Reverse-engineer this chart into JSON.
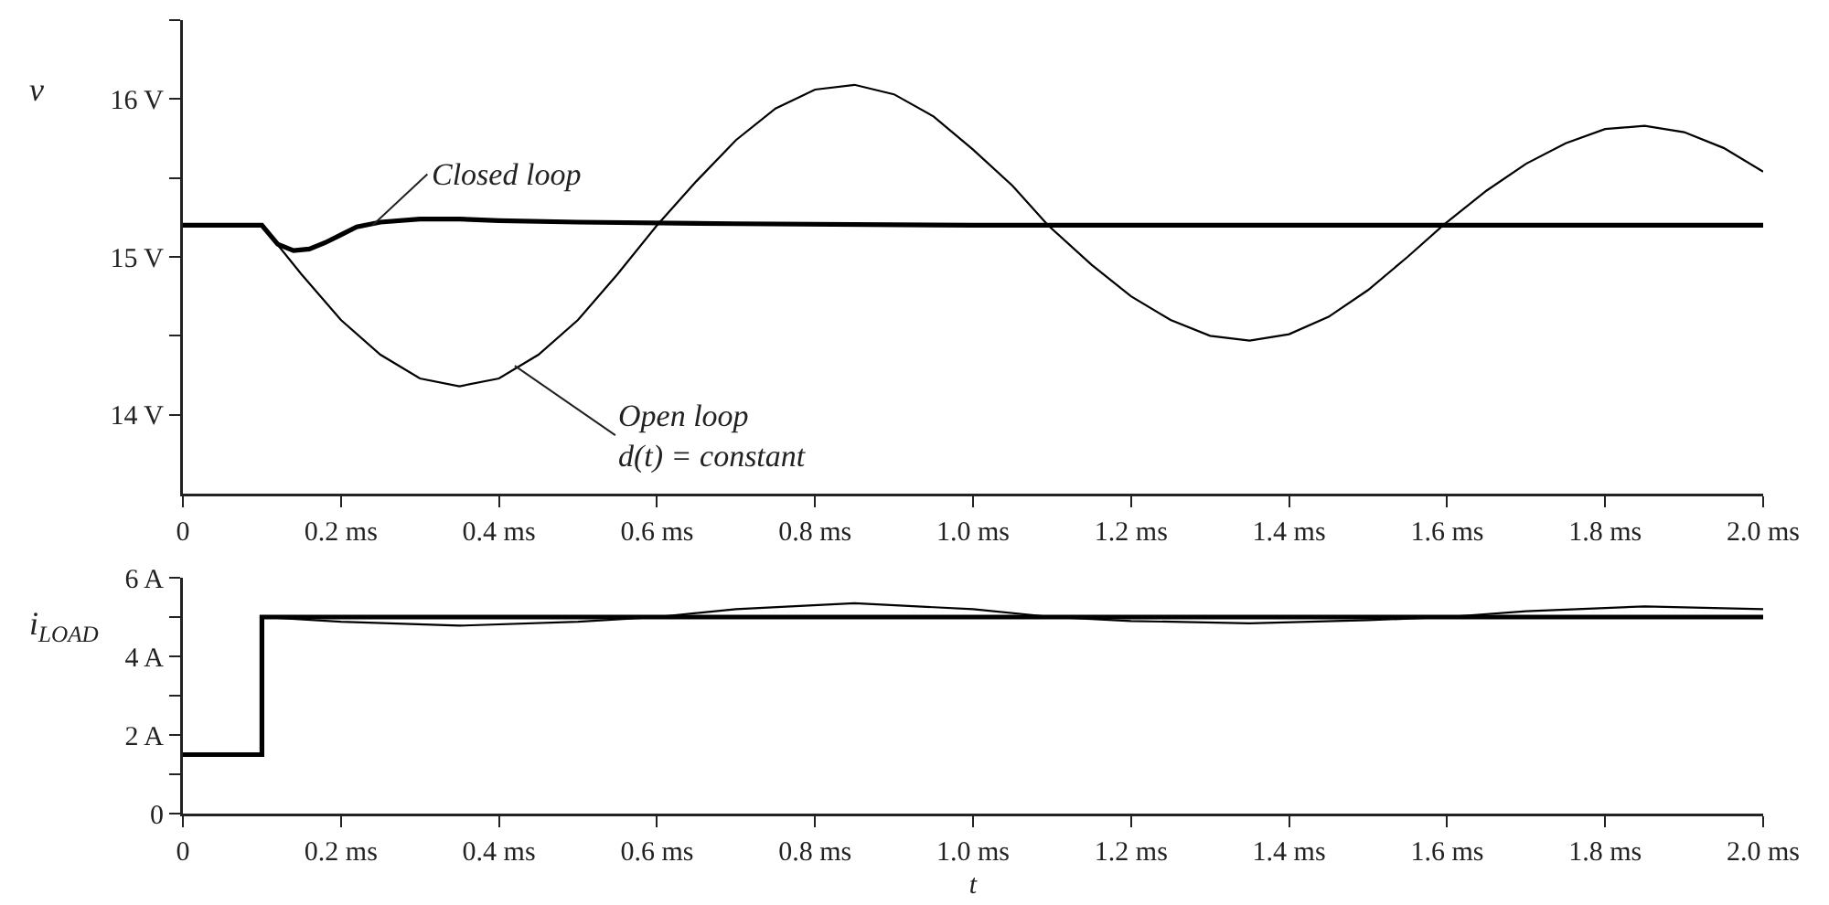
{
  "chart_data": [
    {
      "type": "line",
      "ylabel": "v",
      "xlim": [
        0,
        2.0
      ],
      "ylim": [
        13.5,
        16.5
      ],
      "grid": false,
      "marker": "none",
      "line_style": "solid",
      "xticks": [
        0,
        {
          "value": 0.2,
          "label": "0.2 ms"
        },
        {
          "value": 0.4,
          "label": "0.4 ms"
        },
        {
          "value": 0.6,
          "label": "0.6 ms"
        },
        {
          "value": 0.8,
          "label": "0.8 ms"
        },
        {
          "value": 1.0,
          "label": "1.0 ms"
        },
        {
          "value": 1.2,
          "label": "1.2 ms"
        },
        {
          "value": 1.4,
          "label": "1.4 ms"
        },
        {
          "value": 1.6,
          "label": "1.6 ms"
        },
        {
          "value": 1.8,
          "label": "1.8 ms"
        },
        {
          "value": 2.0,
          "label": "2.0 ms"
        }
      ],
      "yticks": [
        {
          "value": 14,
          "label": "14 V"
        },
        {
          "value": 14.5,
          "label": null
        },
        {
          "value": 15,
          "label": "15 V"
        },
        {
          "value": 15.5,
          "label": null
        },
        {
          "value": 16,
          "label": "16 V"
        },
        {
          "value": 16.5,
          "label": null
        }
      ],
      "annotations": [
        {
          "text": "Closed loop",
          "x": 0.24,
          "y": 15.2
        },
        {
          "text": "Open loop\nd(t) = constant",
          "x": 0.42,
          "y": 14.31
        }
      ],
      "series": [
        {
          "color": "#000000",
          "x": [
            0,
            0.1,
            0.12,
            0.14,
            0.16,
            0.18,
            0.2,
            0.22,
            0.25,
            0.3,
            0.35,
            0.4,
            0.5,
            0.7,
            1.0,
            1.5,
            2.0
          ],
          "values": [
            15.2,
            15.2,
            15.08,
            15.04,
            15.05,
            15.09,
            15.14,
            15.19,
            15.22,
            15.24,
            15.24,
            15.23,
            15.22,
            15.21,
            15.2,
            15.2,
            15.2
          ]
        },
        {
          "color": "#000000",
          "x": [
            0,
            0.1,
            0.15,
            0.2,
            0.25,
            0.3,
            0.35,
            0.4,
            0.45,
            0.5,
            0.55,
            0.6,
            0.65,
            0.7,
            0.75,
            0.8,
            0.85,
            0.9,
            0.95,
            1.0,
            1.05,
            1.095,
            1.15,
            1.2,
            1.25,
            1.3,
            1.35,
            1.4,
            1.45,
            1.5,
            1.55,
            1.595,
            1.65,
            1.7,
            1.75,
            1.8,
            1.85,
            1.9,
            1.95,
            2.0
          ],
          "values": [
            15.2,
            15.2,
            14.89,
            14.6,
            14.38,
            14.23,
            14.18,
            14.23,
            14.38,
            14.6,
            14.89,
            15.2,
            15.48,
            15.74,
            15.94,
            16.06,
            16.09,
            16.03,
            15.89,
            15.68,
            15.45,
            15.2,
            14.95,
            14.75,
            14.6,
            14.5,
            14.47,
            14.51,
            14.62,
            14.79,
            15.0,
            15.2,
            15.42,
            15.59,
            15.72,
            15.81,
            15.83,
            15.79,
            15.69,
            15.54
          ]
        }
      ]
    },
    {
      "type": "line",
      "ylabel": "i$_{LOAD}$",
      "xlabel": "t",
      "xlim": [
        0,
        2.0
      ],
      "ylim": [
        0,
        6
      ],
      "grid": false,
      "marker": "none",
      "line_style": "solid",
      "xticks": [
        0,
        {
          "value": 0.2,
          "label": "0.2 ms"
        },
        {
          "value": 0.4,
          "label": "0.4 ms"
        },
        {
          "value": 0.6,
          "label": "0.6 ms"
        },
        {
          "value": 0.8,
          "label": "0.8 ms"
        },
        {
          "value": 1.0,
          "label": "1.0 ms"
        },
        {
          "value": 1.2,
          "label": "1.2 ms"
        },
        {
          "value": 1.4,
          "label": "1.4 ms"
        },
        {
          "value": 1.6,
          "label": "1.6 ms"
        },
        {
          "value": 1.8,
          "label": "1.8 ms"
        },
        {
          "value": 2.0,
          "label": "2.0 ms"
        }
      ],
      "yticks": [
        0,
        {
          "value": 1,
          "label": null
        },
        {
          "value": 2,
          "label": "2 A"
        },
        {
          "value": 3,
          "label": null
        },
        {
          "value": 4,
          "label": "4 A"
        },
        {
          "value": 5,
          "label": null
        },
        {
          "value": 6,
          "label": "6 A"
        }
      ],
      "series": [
        {
          "color": "#000000",
          "x": [
            0,
            0.1,
            0.1,
            2.0
          ],
          "values": [
            1.5,
            1.5,
            5.0,
            5.0
          ]
        },
        {
          "color": "#000000",
          "x": [
            0.1,
            0.2,
            0.35,
            0.5,
            0.6,
            0.7,
            0.85,
            1.0,
            1.1,
            1.2,
            1.35,
            1.5,
            1.6,
            1.7,
            1.85,
            2.0
          ],
          "values": [
            5.0,
            4.88,
            4.78,
            4.88,
            5.0,
            5.2,
            5.35,
            5.2,
            5.0,
            4.9,
            4.84,
            4.92,
            5.0,
            5.15,
            5.27,
            5.2
          ]
        }
      ]
    }
  ]
}
